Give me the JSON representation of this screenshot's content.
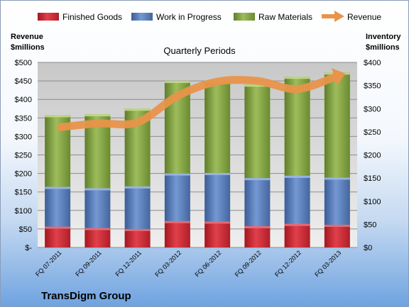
{
  "chart_data": {
    "type": "bar",
    "stacked": true,
    "title": "Quarterly Periods",
    "company": "TransDigm Group",
    "categories": [
      "FQ 07-2011",
      "FQ 09-2011",
      "FQ 12-2011",
      "FQ 03-2012",
      "FQ 06-2012",
      "FQ 09-2012",
      "FQ 12-2012",
      "FQ 03-2013"
    ],
    "left_axis": {
      "label_line1": "Revenue",
      "label_line2": "$millions",
      "ylim": [
        0,
        500
      ],
      "ticks": [
        "$-",
        "$50",
        "$100",
        "$150",
        "$200",
        "$250",
        "$300",
        "$350",
        "$400",
        "$450",
        "$500"
      ]
    },
    "right_axis": {
      "label_line1": "Inventory",
      "label_line2": "$millions",
      "ylim": [
        0,
        400
      ],
      "ticks": [
        "$0",
        "$50",
        "$100",
        "$150",
        "$200",
        "$250",
        "$300",
        "$350",
        "$400"
      ]
    },
    "series": [
      {
        "name": "Finished Goods",
        "axis": "right",
        "color": "#c0242f",
        "values": [
          45,
          42,
          40,
          57,
          56,
          46,
          51,
          49
        ]
      },
      {
        "name": "Work in Progress",
        "axis": "right",
        "color": "#4f74b3",
        "values": [
          86,
          86,
          92,
          103,
          105,
          104,
          104,
          102
        ]
      },
      {
        "name": "Raw Materials",
        "axis": "right",
        "color": "#7a9c3c",
        "values": [
          155,
          160,
          168,
          200,
          200,
          202,
          214,
          227
        ]
      },
      {
        "name": "Revenue",
        "axis": "left",
        "type": "line",
        "color": "#e8944a",
        "values": [
          324,
          335,
          338,
          409,
          448,
          450,
          428,
          463
        ]
      }
    ],
    "grid": true,
    "legend": "top"
  }
}
